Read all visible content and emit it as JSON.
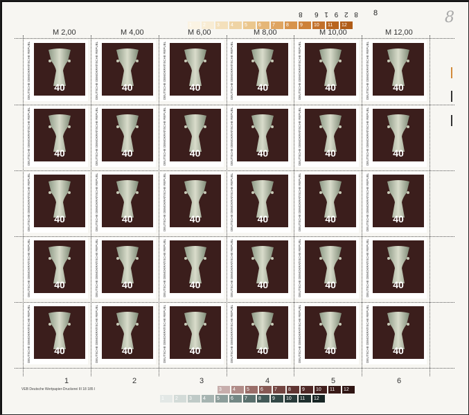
{
  "sheet": {
    "top_values": [
      "M 2,00",
      "M 4,00",
      "M 6,00",
      "M 8,00",
      "M 10,00",
      "M 12,00"
    ],
    "top_inverted_number": "8 2 9 1 6",
    "top_inverted_digit": "8",
    "top_right_number": "8",
    "handwritten_mark": "8",
    "top_color_bar": {
      "labels": [
        "1",
        "2",
        "3",
        "4",
        "5",
        "6",
        "7",
        "8",
        "9",
        "10",
        "11",
        "12"
      ],
      "colors": [
        "#fbf3e3",
        "#f8ecd4",
        "#f4e0bb",
        "#efd4a4",
        "#ebc78e",
        "#e5b677",
        "#dfa561",
        "#d7934b",
        "#cd8138",
        "#c2712b",
        "#b9661f",
        "#b05c17"
      ]
    },
    "bottom_numbers": [
      "1",
      "2",
      "3",
      "4",
      "5",
      "6"
    ],
    "imprint": "VEB Deutsche Wertpapier-Druckerei  III 18 185  I",
    "bottom_brown_bar": {
      "labels": [
        "3",
        "4",
        "5",
        "6",
        "7",
        "8",
        "9",
        "10",
        "11",
        "12"
      ],
      "colors": [
        "#c7aeac",
        "#b08c88",
        "#9a6e69",
        "#875954",
        "#734541",
        "#5f3431",
        "#4f2826",
        "#421f1d",
        "#391a18",
        "#2f1513"
      ]
    },
    "bottom_gray_bar": {
      "labels": [
        "1",
        "2",
        "3",
        "4",
        "5",
        "6",
        "7",
        "8",
        "9",
        "10",
        "11",
        "12"
      ],
      "colors": [
        "#e3e8e6",
        "#d3dbd8",
        "#bfcac7",
        "#a6b4b1",
        "#8c9d9a",
        "#738784",
        "#5a706d",
        "#425957",
        "#334846",
        "#283a39",
        "#1f2f2e",
        "#172524"
      ]
    }
  },
  "stamp": {
    "country": "DEUTSCHE DEMOKRATISCHE REPUBLIK",
    "value": "40",
    "rows": 5,
    "cols": 6,
    "background_color": "#3b1e1c"
  }
}
